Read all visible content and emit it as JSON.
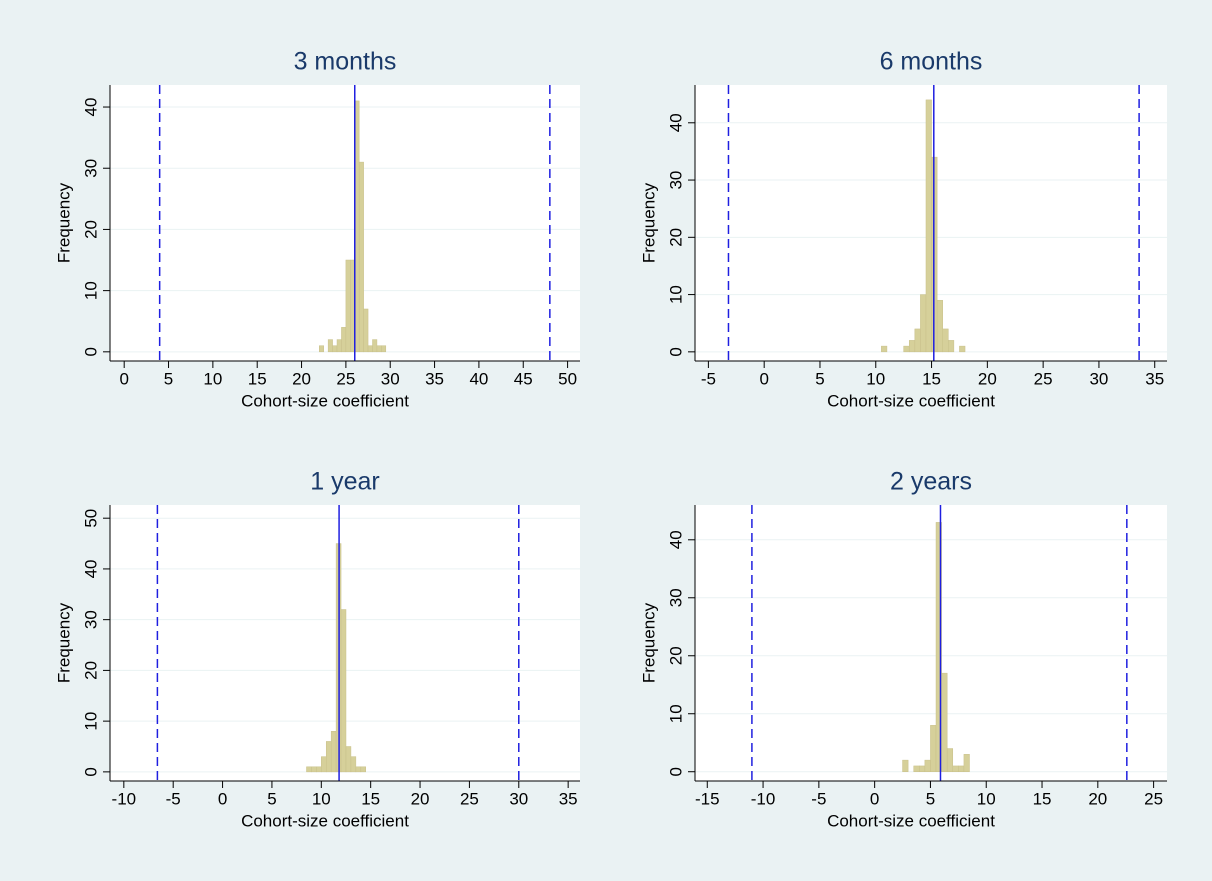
{
  "chart_data": [
    {
      "type": "histogram",
      "title": "3 months",
      "x_label": "Cohort-size coefficient",
      "y_label": "Frequency",
      "bins": [
        22,
        22.5,
        23,
        23.5,
        24,
        24.5,
        25,
        25.5,
        26,
        26.5,
        27,
        27.5,
        28,
        28.5,
        29,
        29.5
      ],
      "values": [
        1,
        0,
        2,
        1,
        2,
        4,
        15,
        15,
        41,
        31,
        7,
        1,
        2,
        1,
        1
      ],
      "color": "#d6d09a",
      "line_color": "#1f1fe0",
      "reference_lines": [
        {
          "value": 4,
          "style": "dashed"
        },
        {
          "value": 26,
          "style": "solid"
        },
        {
          "value": 48,
          "style": "dashed"
        }
      ],
      "xlim": [
        -1.6,
        51.4
      ],
      "ylim": [
        -1.5,
        43.6
      ],
      "xticks": [
        0,
        5,
        10,
        15,
        20,
        25,
        30,
        35,
        40,
        45,
        50
      ],
      "yticks": [
        0,
        10,
        20,
        30,
        40
      ],
      "grid": true
    },
    {
      "type": "histogram",
      "title": "6 months",
      "x_label": "Cohort-size coefficient",
      "y_label": "Frequency",
      "bins": [
        10.5,
        11,
        11.5,
        12,
        12.5,
        13,
        13.5,
        14,
        14.5,
        15,
        15.5,
        16,
        16.5,
        17,
        17.5,
        18
      ],
      "values": [
        1,
        0,
        0,
        0,
        1,
        2,
        4,
        10,
        44,
        34,
        9,
        4,
        2,
        0,
        1
      ],
      "color": "#d6d09a",
      "line_color": "#1f1fe0",
      "reference_lines": [
        {
          "value": -3.2,
          "style": "dashed"
        },
        {
          "value": 15.2,
          "style": "solid"
        },
        {
          "value": 33.6,
          "style": "dashed"
        }
      ],
      "xlim": [
        -6.2,
        36.1
      ],
      "ylim": [
        -1.6,
        46.6
      ],
      "xticks": [
        -5,
        0,
        5,
        10,
        15,
        20,
        25,
        30,
        35
      ],
      "yticks": [
        0,
        10,
        20,
        30,
        40
      ],
      "grid": true
    },
    {
      "type": "histogram",
      "title": "1 year",
      "x_label": "Cohort-size coefficient",
      "y_label": "Frequency",
      "bins": [
        8.5,
        9,
        9.5,
        10,
        10.5,
        11,
        11.5,
        12,
        12.5,
        13,
        13.5,
        14,
        14.5
      ],
      "values": [
        1,
        1,
        1,
        3,
        6,
        8,
        45,
        32,
        5,
        3,
        1,
        1
      ],
      "color": "#d6d09a",
      "line_color": "#1f1fe0",
      "reference_lines": [
        {
          "value": -6.6,
          "style": "dashed"
        },
        {
          "value": 11.8,
          "style": "solid"
        },
        {
          "value": 30,
          "style": "dashed"
        }
      ],
      "xlim": [
        -11.4,
        36.2
      ],
      "ylim": [
        -1.8,
        52.6
      ],
      "xticks": [
        -10,
        -5,
        0,
        5,
        10,
        15,
        20,
        25,
        30,
        35
      ],
      "yticks": [
        0,
        10,
        20,
        30,
        40,
        50
      ],
      "grid": true
    },
    {
      "type": "histogram",
      "title": "2 years",
      "x_label": "Cohort-size coefficient",
      "y_label": "Frequency",
      "bins": [
        2.5,
        3,
        3.5,
        4,
        4.5,
        5,
        5.5,
        6,
        6.5,
        7,
        7.5,
        8,
        8.5
      ],
      "values": [
        2,
        0,
        1,
        1,
        2,
        8,
        43,
        17,
        4,
        1,
        1,
        3
      ],
      "color": "#d6d09a",
      "line_color": "#1f1fe0",
      "reference_lines": [
        {
          "value": -11,
          "style": "dashed"
        },
        {
          "value": 5.9,
          "style": "solid"
        },
        {
          "value": 22.6,
          "style": "dashed"
        }
      ],
      "xlim": [
        -16.1,
        26.2
      ],
      "ylim": [
        -1.6,
        46
      ],
      "xticks": [
        -15,
        -10,
        -5,
        0,
        5,
        10,
        15,
        20,
        25
      ],
      "yticks": [
        0,
        10,
        20,
        30,
        40
      ],
      "grid": true
    }
  ]
}
